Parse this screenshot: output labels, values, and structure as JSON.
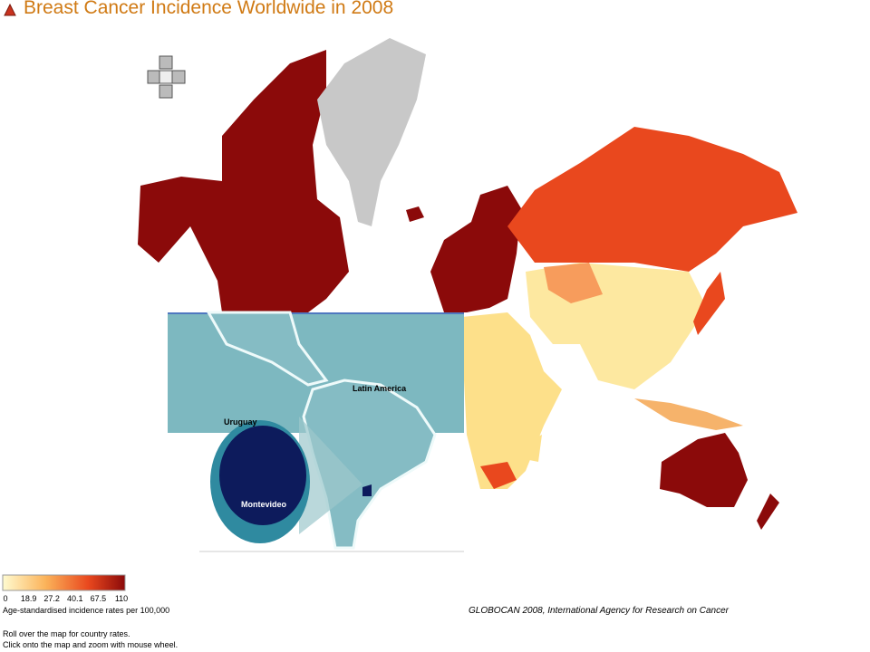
{
  "header": {
    "title": "Breast Cancer Incidence Worldwide in 2008"
  },
  "inset": {
    "region": "Latin America",
    "country": "Uruguay",
    "city": "Montevideo"
  },
  "legend": {
    "ticks": [
      0,
      18.9,
      27.2,
      40.1,
      67.5,
      110
    ],
    "caption": "Age-standardised incidence rates per 100,000"
  },
  "source": "GLOBOCAN 2008, International Agency for Research on Cancer",
  "instructions": [
    "Roll over the map for country rates.",
    "Click onto the map and zoom with mouse wheel."
  ]
}
